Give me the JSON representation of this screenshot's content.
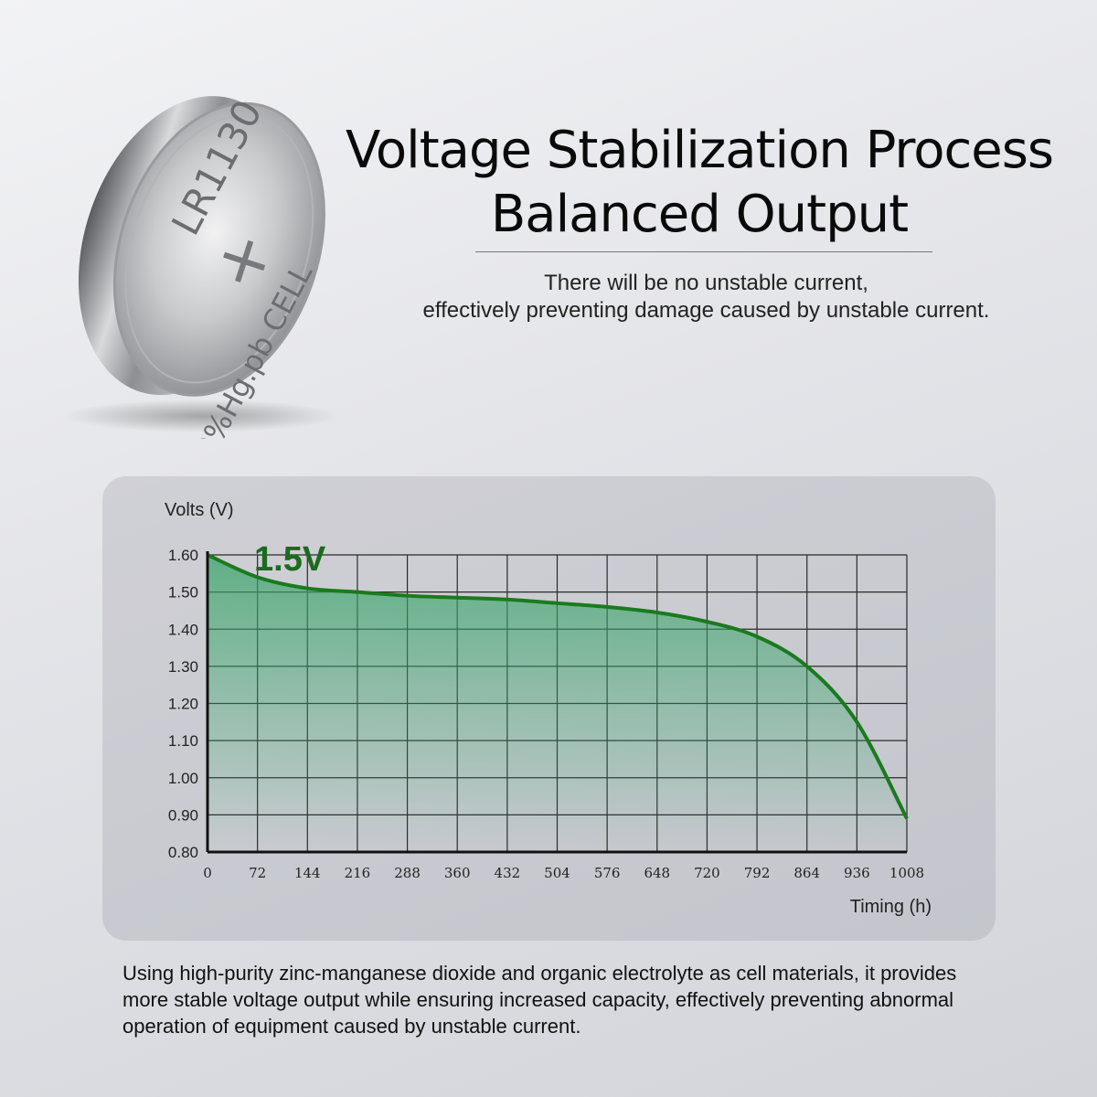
{
  "coin": {
    "model": "LR1130",
    "polarity": "+",
    "marking": "0%Hg.pb CELL"
  },
  "headline": {
    "line1": "Voltage Stabilization Process",
    "line2": "Balanced Output"
  },
  "subtext": {
    "line1": "There will be no unstable current,",
    "line2": "effectively preventing damage caused by unstable current."
  },
  "chart_data": {
    "type": "area",
    "ylabel": "Volts (V)",
    "xlabel": "Timing (h)",
    "annotation": "1.5V",
    "ylim": [
      0.8,
      1.6
    ],
    "xlim": [
      0,
      1008
    ],
    "y_ticks": [
      "1.60",
      "1.50",
      "1.40",
      "1.30",
      "1.20",
      "1.10",
      "1.00",
      "0.90",
      "0.80"
    ],
    "x_ticks": [
      "0",
      "72",
      "144",
      "216",
      "288",
      "360",
      "432",
      "504",
      "576",
      "648",
      "720",
      "792",
      "864",
      "936",
      "1008"
    ],
    "grid": true,
    "line_color": "#1b7a1e",
    "fill_color": "#3aa56b",
    "annotation_color": "#1b6b1f",
    "series": [
      {
        "x": [
          0,
          72,
          144,
          216,
          288,
          360,
          432,
          504,
          576,
          648,
          720,
          792,
          864,
          936,
          1008
        ],
        "values": [
          1.6,
          1.54,
          1.51,
          1.5,
          1.49,
          1.485,
          1.48,
          1.47,
          1.46,
          1.445,
          1.42,
          1.38,
          1.3,
          1.15,
          0.89
        ]
      }
    ]
  },
  "footer": {
    "line1": "Using high-purity zinc-manganese dioxide and organic electrolyte as cell materials, it provides",
    "line2": "more stable voltage output while ensuring increased capacity, effectively preventing abnormal",
    "line3": "operation of equipment caused by unstable current."
  }
}
